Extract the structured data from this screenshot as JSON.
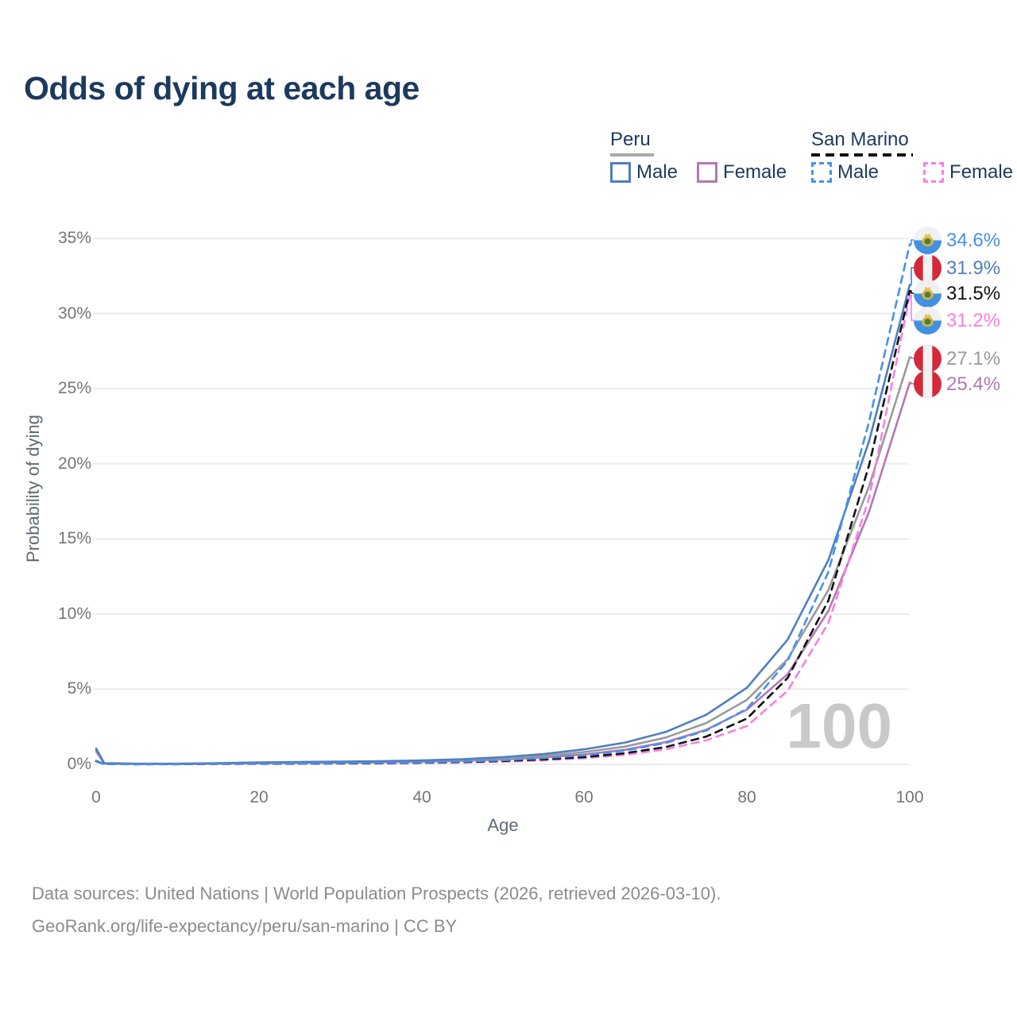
{
  "title": "Odds of dying at each age",
  "legend": {
    "groups": [
      {
        "country": "Peru",
        "line_style": "solid",
        "underline_color": "#a9a9a9",
        "items": [
          {
            "label": "Male",
            "color": "#4e7fc0"
          },
          {
            "label": "Female",
            "color": "#b378b3"
          }
        ]
      },
      {
        "country": "San Marino",
        "line_style": "dashed",
        "underline_color": "#111111",
        "items": [
          {
            "label": "Male",
            "color": "#4691ec"
          },
          {
            "label": "Female",
            "color": "#fa7ee3"
          }
        ]
      }
    ]
  },
  "y_axis": {
    "title": "Probability of dying",
    "ticks": [
      "35%",
      "30%",
      "25%",
      "20%",
      "15%",
      "10%",
      "5%",
      "0%"
    ]
  },
  "x_axis": {
    "title": "Age",
    "ticks": [
      "0",
      "20",
      "40",
      "60",
      "80",
      "100"
    ]
  },
  "watermark": "100",
  "end_labels": [
    {
      "value": "34.6%",
      "series": "San Marino male",
      "flag": "san-marino",
      "color": "#4691ec"
    },
    {
      "value": "31.9%",
      "series": "Peru male",
      "flag": "peru",
      "color": "#4e7fc0"
    },
    {
      "value": "31.5%",
      "series": "San Marino both sexes",
      "flag": "san-marino",
      "color": "#111111"
    },
    {
      "value": "31.2%",
      "series": "San Marino female",
      "flag": "san-marino",
      "color": "#fa7ee3"
    },
    {
      "value": "27.1%",
      "series": "Peru both sexes",
      "flag": "peru",
      "color": "#9a9a9a"
    },
    {
      "value": "25.4%",
      "series": "Peru female",
      "flag": "peru",
      "color": "#b378b3"
    }
  ],
  "footer": {
    "line1": "Data sources: United Nations | World Population Prospects (2026, retrieved 2026-03-10).",
    "line2": "GeoRank.org/life-expectancy/peru/san-marino | CC BY"
  },
  "chart_data": {
    "type": "line",
    "title": "Odds of dying at each age",
    "xlabel": "Age",
    "ylabel": "Probability of dying",
    "xlim": [
      0,
      100
    ],
    "ylim": [
      0,
      35
    ],
    "xticks": [
      0,
      20,
      40,
      60,
      80,
      100
    ],
    "yticks_pct": [
      0,
      5,
      10,
      15,
      20,
      25,
      30,
      35
    ],
    "grid": "horizontal",
    "legend_position": "top-right",
    "highlighted_age": 100,
    "x_ages": [
      0,
      1,
      5,
      10,
      15,
      20,
      25,
      30,
      35,
      40,
      45,
      50,
      55,
      60,
      65,
      70,
      75,
      80,
      85,
      90,
      95,
      100
    ],
    "series": [
      {
        "id": "peru_female",
        "name": "Peru female",
        "country": "Peru",
        "sex": "female",
        "style": "solid",
        "color": "#b378b3",
        "end_value_pct": 25.4,
        "values_pct": [
          0.85,
          0.06,
          0.03,
          0.03,
          0.05,
          0.07,
          0.09,
          0.11,
          0.14,
          0.17,
          0.23,
          0.32,
          0.46,
          0.66,
          0.97,
          1.48,
          2.3,
          3.65,
          6.0,
          10.2,
          16.8,
          25.4
        ]
      },
      {
        "id": "peru_both",
        "name": "Peru both sexes",
        "country": "Peru",
        "sex": "both",
        "style": "solid",
        "color": "#9a9a9a",
        "end_value_pct": 27.1,
        "values_pct": [
          0.95,
          0.07,
          0.035,
          0.035,
          0.06,
          0.1,
          0.12,
          0.14,
          0.17,
          0.21,
          0.28,
          0.39,
          0.56,
          0.82,
          1.18,
          1.78,
          2.75,
          4.3,
          7.0,
          11.6,
          18.5,
          27.1
        ]
      },
      {
        "id": "peru_male",
        "name": "Peru male",
        "country": "Peru",
        "sex": "male",
        "style": "solid",
        "color": "#4e7fc0",
        "end_value_pct": 31.9,
        "values_pct": [
          1.05,
          0.08,
          0.04,
          0.04,
          0.08,
          0.13,
          0.16,
          0.18,
          0.21,
          0.26,
          0.34,
          0.48,
          0.68,
          1.0,
          1.45,
          2.15,
          3.3,
          5.1,
          8.3,
          13.6,
          21.5,
          31.9
        ]
      },
      {
        "id": "sm_female",
        "name": "San Marino female",
        "country": "San Marino",
        "sex": "female",
        "style": "dashed",
        "color": "#fa7ee3",
        "end_value_pct": 31.2,
        "values_pct": [
          0.2,
          0.015,
          0.008,
          0.01,
          0.02,
          0.03,
          0.04,
          0.05,
          0.06,
          0.09,
          0.12,
          0.18,
          0.27,
          0.41,
          0.63,
          1.0,
          1.6,
          2.55,
          4.9,
          9.4,
          17.7,
          31.2
        ]
      },
      {
        "id": "sm_both",
        "name": "San Marino both sexes",
        "country": "San Marino",
        "sex": "both",
        "style": "dashed",
        "color": "#111111",
        "end_value_pct": 31.5,
        "values_pct": [
          0.22,
          0.018,
          0.009,
          0.012,
          0.03,
          0.045,
          0.055,
          0.065,
          0.08,
          0.11,
          0.15,
          0.22,
          0.33,
          0.48,
          0.74,
          1.15,
          1.85,
          3.05,
          5.75,
          10.9,
          19.9,
          31.5
        ]
      },
      {
        "id": "sm_male",
        "name": "San Marino male",
        "country": "San Marino",
        "sex": "male",
        "style": "dashed",
        "color": "#4691ec",
        "end_value_pct": 34.6,
        "values_pct": [
          0.25,
          0.02,
          0.01,
          0.015,
          0.04,
          0.06,
          0.07,
          0.08,
          0.1,
          0.13,
          0.18,
          0.27,
          0.41,
          0.6,
          0.92,
          1.42,
          2.25,
          3.7,
          6.9,
          12.8,
          22.8,
          34.6
        ]
      }
    ]
  }
}
